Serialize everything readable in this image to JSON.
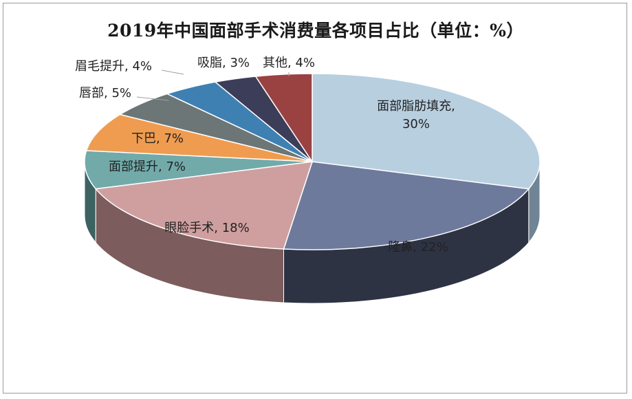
{
  "chart_data": {
    "type": "pie",
    "title": "2019年中国面部手术消费量各项目占比（单位：%）",
    "slices": [
      {
        "label": "面部脂肪填充, 30%",
        "value": 30,
        "color": "#b8cfe0",
        "side": "#6f8494"
      },
      {
        "label": "隆鼻, 22%",
        "value": 22,
        "color": "#6e7a9c",
        "side": "#2e3344"
      },
      {
        "label": "眼脸手术, 18%",
        "value": 18,
        "color": "#cf9f9f",
        "side": "#7c5c5c"
      },
      {
        "label": "面部提升, 7%",
        "value": 7,
        "color": "#72aaaa",
        "side": "#3d6262"
      },
      {
        "label": "下巴, 7%",
        "value": 7,
        "color": "#ef9c50",
        "side": "#955c2a"
      },
      {
        "label": "唇部, 5%",
        "value": 5,
        "color": "#6c7676",
        "side": "#3d4444"
      },
      {
        "label": "眉毛提升, 4%",
        "value": 4,
        "color": "#3f80b2",
        "side": "#234e6c"
      },
      {
        "label": "吸脂, 3%",
        "value": 3,
        "color": "#3c3d58",
        "side": "#1e1f30"
      },
      {
        "label": "其他, 4%",
        "value": 4,
        "color": "#9a4242",
        "side": "#5a2424"
      }
    ]
  }
}
